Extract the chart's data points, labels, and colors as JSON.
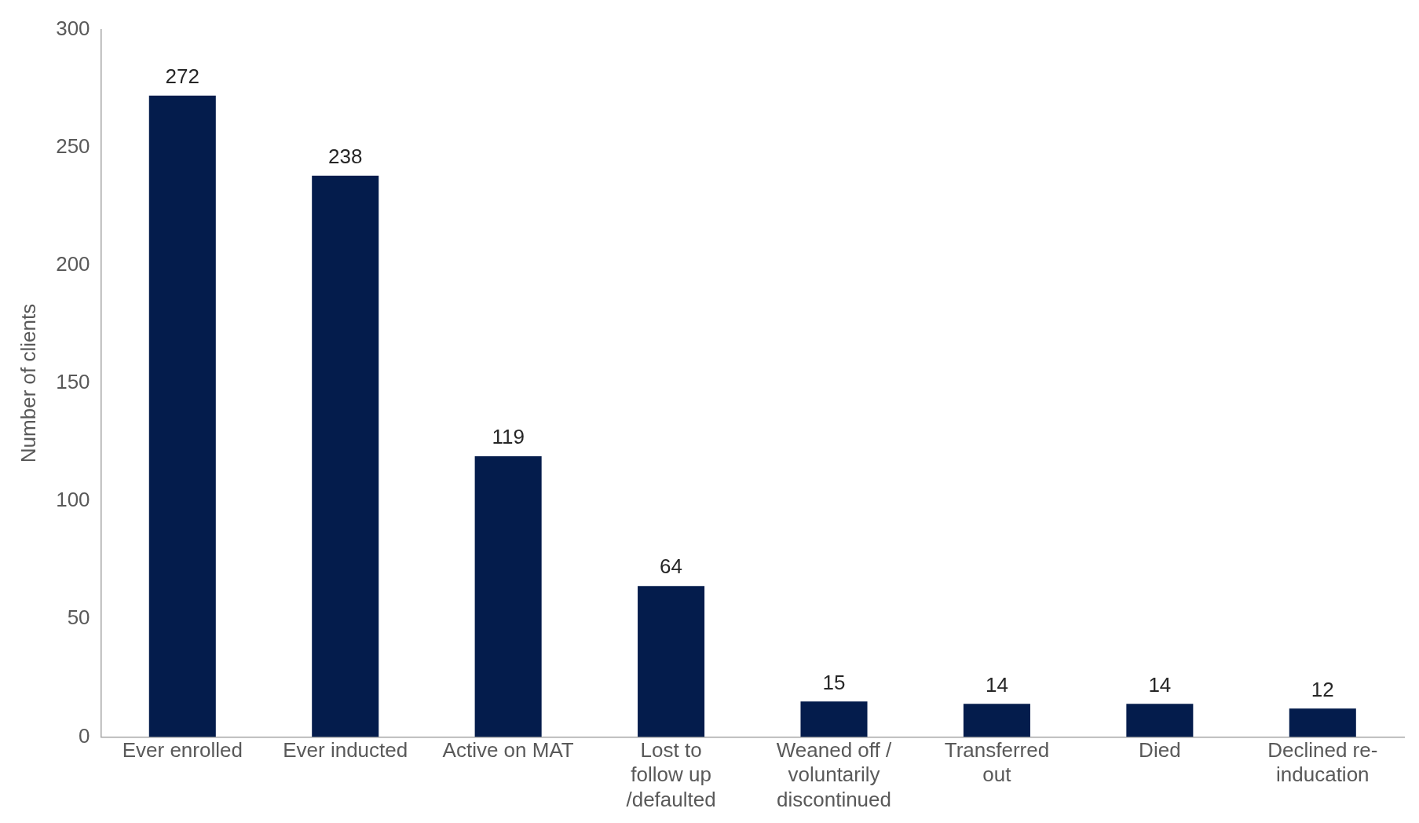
{
  "chart_data": {
    "type": "bar",
    "ylabel": "Number of clients",
    "categories": [
      "Ever enrolled",
      "Ever inducted",
      "Active on MAT",
      "Lost to follow up /defaulted",
      "Weaned off / voluntarily discontinued",
      "Transferred out",
      "Died",
      "Declined re-inducation"
    ],
    "values": [
      272,
      238,
      119,
      64,
      15,
      14,
      14,
      12
    ],
    "color": "#041c4c",
    "ylim": [
      0,
      300
    ],
    "yticks": [
      0,
      50,
      100,
      150,
      200,
      250,
      300
    ],
    "grid": false,
    "legend": false,
    "data_labels": true
  }
}
